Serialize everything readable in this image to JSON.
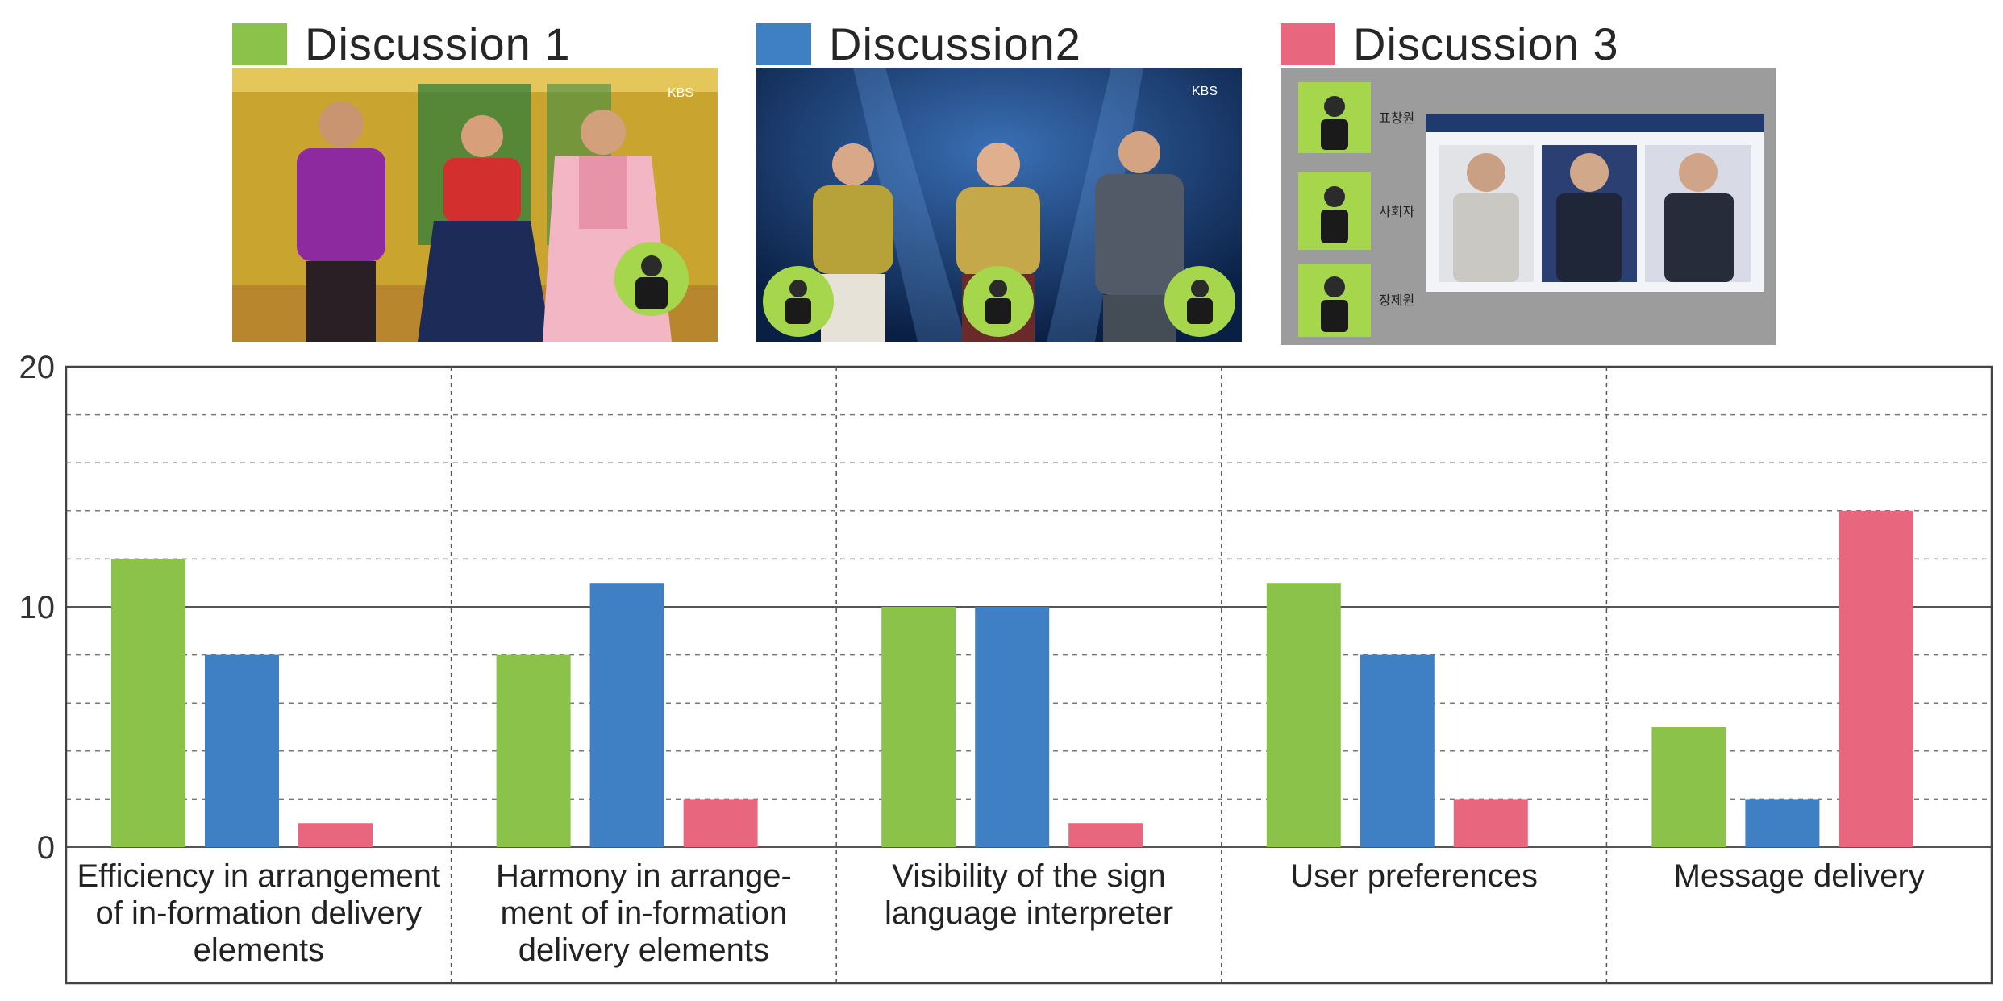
{
  "legend": [
    {
      "label": "Discussion 1",
      "color": "#8bc34a",
      "icon": "green-swatch"
    },
    {
      "label": "Discussion2",
      "color": "#3f7fc4",
      "icon": "blue-swatch"
    },
    {
      "label": "Discussion 3",
      "color": "#e8677e",
      "icon": "pink-swatch"
    }
  ],
  "thumbnails": {
    "thumb1": {
      "badge": "KBS"
    },
    "thumb2": {
      "badge": "KBS"
    },
    "thumb3": {
      "captions": [
        "표창원",
        "사회자",
        "장제원"
      ]
    }
  },
  "chart_data": {
    "type": "bar",
    "categories": [
      [
        "Efficiency in arrangement",
        "of in-formation delivery",
        "elements"
      ],
      [
        "Harmony in arrange-",
        "ment of in-formation",
        "delivery elements"
      ],
      [
        "Visibility of the sign",
        "language interpreter"
      ],
      [
        "User preferences"
      ],
      [
        "Message delivery"
      ]
    ],
    "series": [
      {
        "name": "Discussion 1",
        "color": "#8bc34a",
        "values": [
          12,
          8,
          10,
          11,
          5
        ]
      },
      {
        "name": "Discussion2",
        "color": "#3f7fc4",
        "values": [
          8,
          11,
          10,
          8,
          2
        ]
      },
      {
        "name": "Discussion 3",
        "color": "#e8677e",
        "values": [
          1,
          2,
          1,
          2,
          14
        ]
      }
    ],
    "ylim": [
      0,
      20
    ],
    "yticks": [
      0,
      10,
      20
    ],
    "grid": true,
    "legend_position": "top"
  }
}
